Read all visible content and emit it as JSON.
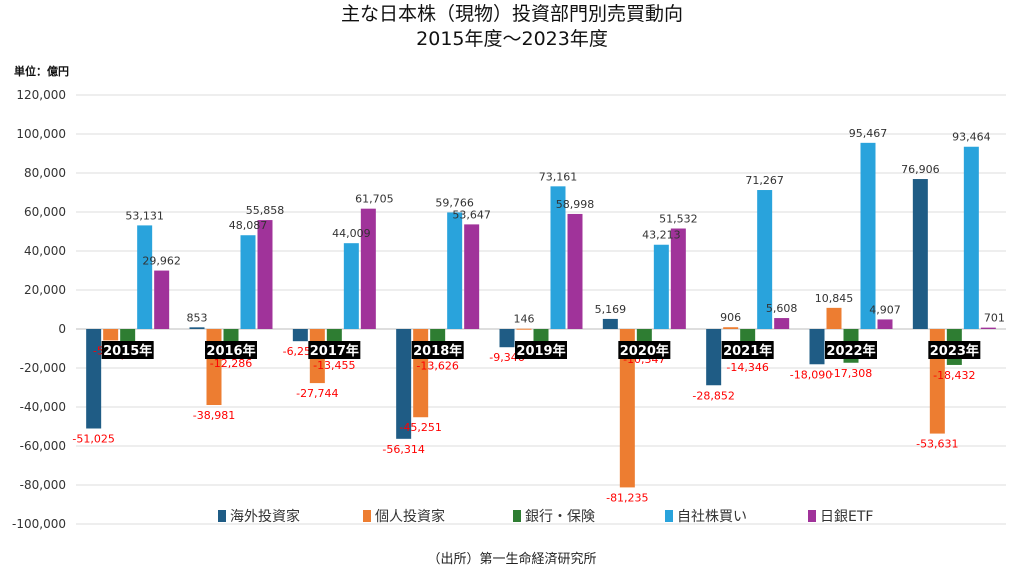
{
  "title_line1": "主な日本株（現物）投資部門別売買動向",
  "title_line2": "2015年度～2023年度",
  "unit_label": "単位：億円",
  "source": "（出所）第一生命経済研究所",
  "chart_data": {
    "type": "bar",
    "categories": [
      "2015年",
      "2016年",
      "2017年",
      "2018年",
      "2019年",
      "2020年",
      "2021年",
      "2022年",
      "2023年"
    ],
    "series": [
      {
        "name": "海外投資家",
        "color": "#1f5c85",
        "values": [
          -51025,
          853,
          -6255,
          -56314,
          -9346,
          5169,
          -28852,
          -18090,
          76906
        ]
      },
      {
        "name": "個人投資家",
        "color": "#ed7d31",
        "values": [
          -5854,
          -38981,
          -27744,
          -45251,
          146,
          -81235,
          906,
          10845,
          -53631
        ]
      },
      {
        "name": "銀行・保険",
        "color": "#2e7d32",
        "values": [
          -8038,
          -12286,
          -13455,
          -13626,
          -7366,
          -10347,
          -14346,
          -17308,
          -18432
        ]
      },
      {
        "name": "自社株買い",
        "color": "#29a3dc",
        "values": [
          53131,
          48087,
          44009,
          59766,
          73161,
          43213,
          71267,
          95467,
          93464
        ]
      },
      {
        "name": "日銀ETF",
        "color": "#a0339a",
        "values": [
          29962,
          55858,
          61705,
          53647,
          58998,
          51532,
          5608,
          4907,
          701
        ]
      }
    ],
    "ylim": [
      -100000,
      120000
    ],
    "yticks": [
      120000,
      100000,
      80000,
      60000,
      40000,
      20000,
      0,
      -20000,
      -40000,
      -60000,
      -80000,
      -100000
    ],
    "ytick_labels": [
      "120,000",
      "100,000",
      "80,000",
      "60,000",
      "40,000",
      "20,000",
      "0",
      "-20,000",
      "-40,000",
      "-60,000",
      "-80,000",
      "-100,000"
    ],
    "grid": true,
    "legend_position": "bottom",
    "negative_label_color": "#ff0000",
    "positive_label_color": "#333333",
    "year_label_background": "#000000"
  }
}
